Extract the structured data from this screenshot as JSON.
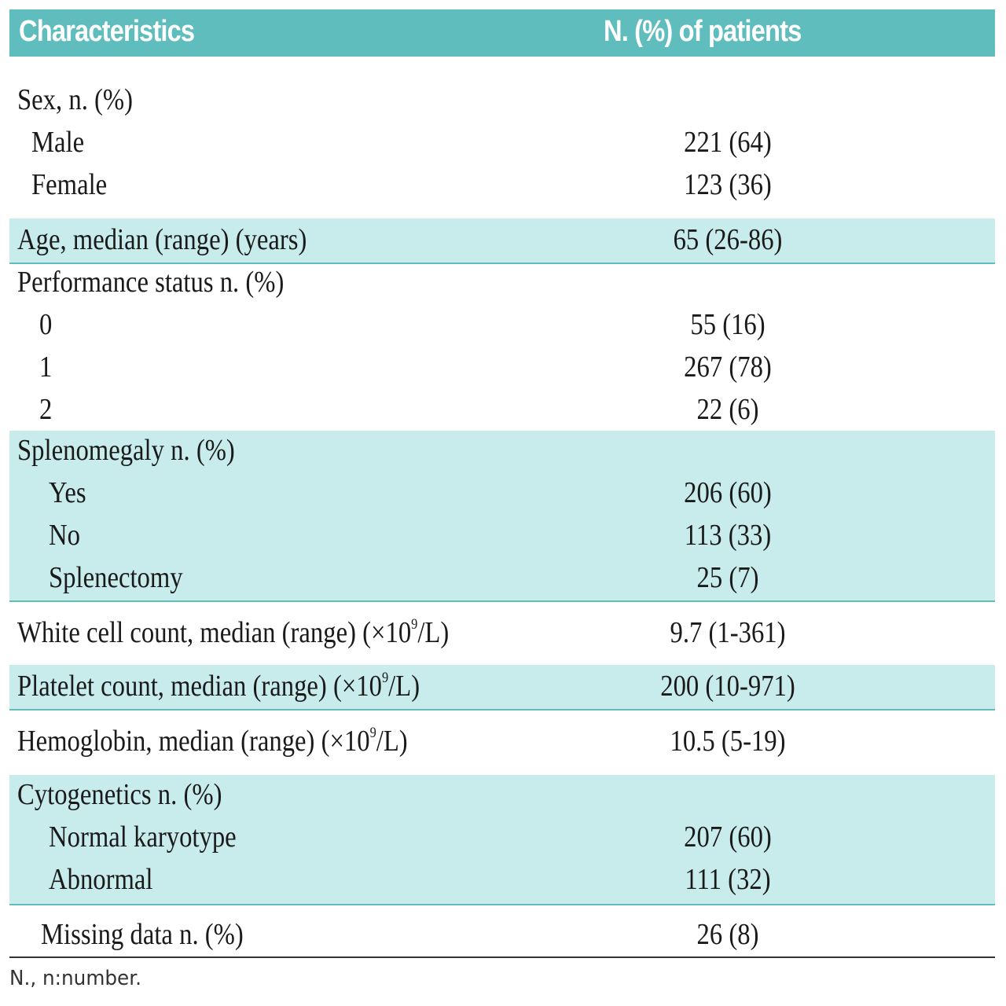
{
  "header": {
    "col1": "Characteristics",
    "col2": "N. (%) of patients"
  },
  "sex": {
    "label": "Sex, n. (%)",
    "male_label": "Male",
    "male_value": "221 (64)",
    "female_label": "Female",
    "female_value": "123 (36)"
  },
  "age": {
    "label": "Age, median (range) (years)",
    "value": "65 (26-86)"
  },
  "performance": {
    "label": "Performance status n. (%)",
    "rows": [
      {
        "label": "0",
        "value": "55 (16)"
      },
      {
        "label": "1",
        "value": "267 (78)"
      },
      {
        "label": "2",
        "value": "22 (6)"
      }
    ]
  },
  "splenomegaly": {
    "label": "Splenomegaly n. (%)",
    "rows": [
      {
        "label": "Yes",
        "value": "206 (60)"
      },
      {
        "label": "No",
        "value": "113 (33)"
      },
      {
        "label": "Splenectomy",
        "value": "25 (7)"
      }
    ]
  },
  "wbc": {
    "label_prefix": "White cell count, median (range) (×10",
    "label_sup": "9",
    "label_suffix": "/L)",
    "value": "9.7 (1-361)"
  },
  "platelet": {
    "label_prefix": "Platelet count, median (range) (×10",
    "label_sup": "9",
    "label_suffix": "/L)",
    "value": "200 (10-971)"
  },
  "hemoglobin": {
    "label_prefix": "Hemoglobin, median (range) (×10",
    "label_sup": "9",
    "label_suffix": "/L)",
    "value": "10.5 (5-19)"
  },
  "cytogenetics": {
    "label": "Cytogenetics n. (%)",
    "rows": [
      {
        "label": "Normal karyotype",
        "value": "207 (60)"
      },
      {
        "label": "Abnormal",
        "value": "111 (32)"
      }
    ]
  },
  "missing": {
    "label": "Missing data n. (%)",
    "value": "26 (8)"
  },
  "footnote": "N., n:number."
}
